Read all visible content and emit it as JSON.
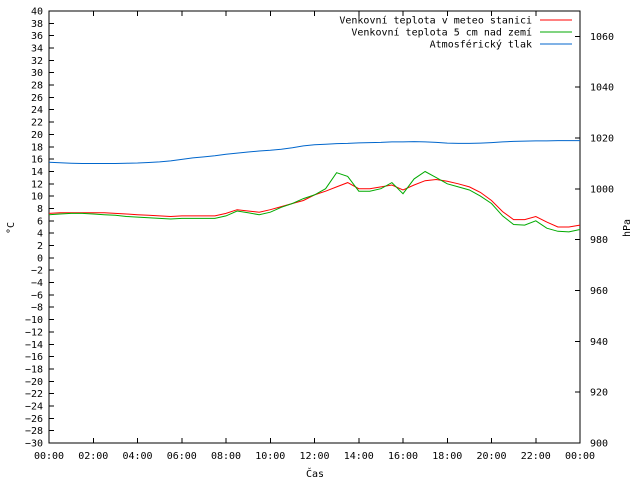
{
  "chart_data": {
    "type": "line",
    "title": "",
    "xlabel": "Čas",
    "ylabel_left": "°C",
    "ylabel_right": "hPa",
    "x_ticks": [
      "00:00",
      "02:00",
      "04:00",
      "06:00",
      "08:00",
      "10:00",
      "12:00",
      "14:00",
      "16:00",
      "18:00",
      "20:00",
      "22:00",
      "00:00"
    ],
    "x_range_hours": [
      0,
      24
    ],
    "ylim_left": [
      -30,
      40
    ],
    "y_ticks_left_step": 2,
    "ylim_right": [
      900,
      1070
    ],
    "y_ticks_right": [
      900,
      920,
      940,
      960,
      980,
      1000,
      1020,
      1040,
      1060
    ],
    "grid": false,
    "legend_position": "top-right",
    "x": [
      0,
      0.5,
      1,
      1.5,
      2,
      2.5,
      3,
      3.5,
      4,
      4.5,
      5,
      5.5,
      6,
      6.5,
      7,
      7.5,
      8,
      8.5,
      9,
      9.5,
      10,
      10.5,
      11,
      11.5,
      12,
      12.5,
      13,
      13.5,
      14,
      14.5,
      15,
      15.5,
      16,
      16.5,
      17,
      17.5,
      18,
      18.5,
      19,
      19.5,
      20,
      20.5,
      21,
      21.5,
      22,
      22.5,
      23,
      23.5,
      24
    ],
    "series": [
      {
        "name": "Venkovní teplota v meteo stanici",
        "color": "#ff0000",
        "axis": "left",
        "values": [
          7.2,
          7.3,
          7.3,
          7.3,
          7.3,
          7.3,
          7.2,
          7.1,
          7.0,
          6.9,
          6.8,
          6.7,
          6.8,
          6.8,
          6.8,
          6.8,
          7.2,
          7.8,
          7.6,
          7.4,
          7.8,
          8.3,
          8.8,
          9.3,
          10.2,
          10.8,
          11.5,
          12.2,
          11.2,
          11.2,
          11.5,
          11.8,
          11.0,
          11.8,
          12.5,
          12.7,
          12.4,
          12.0,
          11.5,
          10.6,
          9.3,
          7.5,
          6.2,
          6.2,
          6.7,
          5.8,
          5.0,
          5.0,
          5.3
        ]
      },
      {
        "name": "Venkovní teplota 5 cm nad zemí",
        "color": "#00aa00",
        "axis": "left",
        "values": [
          7.0,
          7.1,
          7.2,
          7.2,
          7.1,
          7.0,
          6.9,
          6.7,
          6.6,
          6.5,
          6.4,
          6.3,
          6.4,
          6.4,
          6.4,
          6.4,
          6.8,
          7.6,
          7.3,
          7.0,
          7.4,
          8.2,
          8.8,
          9.6,
          10.2,
          11.2,
          13.8,
          13.2,
          10.8,
          10.8,
          11.2,
          12.2,
          10.4,
          12.8,
          14.0,
          13.0,
          12.0,
          11.5,
          11.0,
          10.0,
          8.8,
          6.8,
          5.4,
          5.3,
          6.0,
          4.8,
          4.3,
          4.2,
          4.6
        ]
      },
      {
        "name": "Atmosférický tlak",
        "color": "#0066cc",
        "axis": "right",
        "values": [
          1010.5,
          1010.3,
          1010.1,
          1010.0,
          1010.0,
          1010.0,
          1010.0,
          1010.1,
          1010.2,
          1010.4,
          1010.6,
          1011.0,
          1011.6,
          1012.2,
          1012.6,
          1013.0,
          1013.6,
          1014.1,
          1014.5,
          1014.9,
          1015.2,
          1015.6,
          1016.2,
          1016.9,
          1017.4,
          1017.6,
          1017.8,
          1017.9,
          1018.1,
          1018.2,
          1018.3,
          1018.5,
          1018.5,
          1018.6,
          1018.5,
          1018.3,
          1018.0,
          1017.9,
          1017.9,
          1018.0,
          1018.2,
          1018.5,
          1018.7,
          1018.8,
          1018.9,
          1018.9,
          1019.0,
          1019.0,
          1019.0
        ]
      }
    ]
  }
}
